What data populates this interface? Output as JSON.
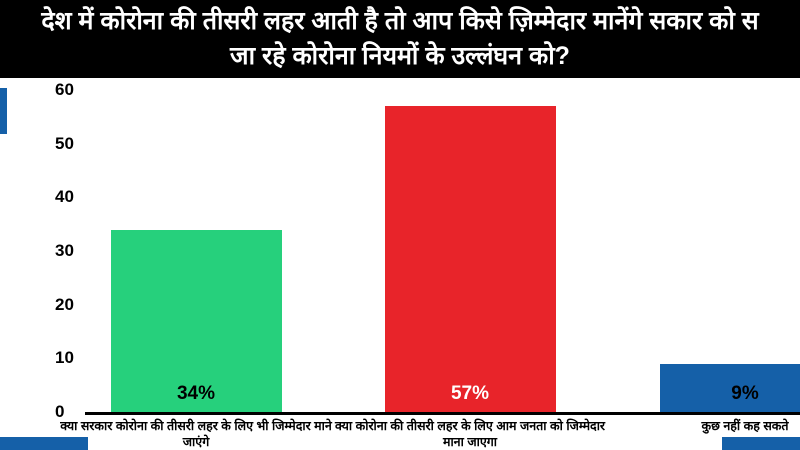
{
  "header": {
    "title_line1": "देश में कोरोना की तीसरी लहर आती है तो आप किसे ज़िम्मेदार मानेंगे सकार को स",
    "title_line2": "जा रहे कोरोना नियमों के उल्लंघन को?"
  },
  "chart_data": {
    "type": "bar",
    "title": "देश में कोरोना की तीसरी लहर आती है तो आप किसे ज़िम्मेदार मानेंगे सकार को स जा रहे कोरोना नियमों के उल्लंघन को?",
    "categories": [
      "क्या सरकार कोरोना की तीसरी लहर के लिए भी जिम्मेदार माने जाएंगे",
      "क्या कोरोना की तीसरी लहर के लिए आम जनता को जिम्मेदार माना जाएगा",
      "कुछ नहीं कह सकते"
    ],
    "values": [
      34,
      57,
      9
    ],
    "labels": [
      "34%",
      "57%",
      "9%"
    ],
    "bar_colors": [
      "#26d07c",
      "#e8242a",
      "#1560a8"
    ],
    "label_colors": [
      "#000000",
      "#ffffff",
      "#000000"
    ],
    "ylabel": "",
    "xlabel": "",
    "ylim": [
      0,
      60
    ],
    "yticks": [
      0,
      10,
      20,
      30,
      40,
      50,
      60
    ],
    "grid": false,
    "legend": false
  },
  "decor": {
    "accent_blue": "#1560a8"
  }
}
